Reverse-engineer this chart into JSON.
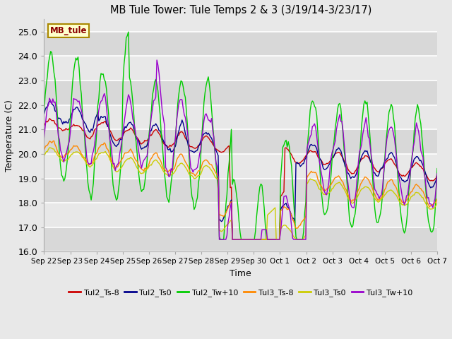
{
  "title": "MB Tule Tower: Tule Temps 2 & 3 (3/19/14-3/23/17)",
  "xlabel": "Time",
  "ylabel": "Temperature (C)",
  "ylim": [
    16.0,
    25.5
  ],
  "yticks": [
    16.0,
    17.0,
    18.0,
    19.0,
    20.0,
    21.0,
    22.0,
    23.0,
    24.0,
    25.0
  ],
  "legend_label": "MB_tule",
  "series_labels": [
    "Tul2_Ts-8",
    "Tul2_Ts0",
    "Tul2_Tw+10",
    "Tul3_Ts-8",
    "Tul3_Ts0",
    "Tul3_Tw+10"
  ],
  "series_colors": [
    "#cc0000",
    "#00008b",
    "#00cc00",
    "#ff8800",
    "#cccc00",
    "#9900cc"
  ],
  "background_color": "#e8e8e8",
  "plot_bg_color": "#e8e8e8",
  "grid_color": "#ffffff",
  "x_tick_labels": [
    "Sep 22",
    "Sep 23",
    "Sep 24",
    "Sep 25",
    "Sep 26",
    "Sep 27",
    "Sep 28",
    "Sep 29",
    "Sep 30",
    "Oct 1",
    "Oct 2",
    "Oct 3",
    "Oct 4",
    "Oct 5",
    "Oct 6",
    "Oct 7"
  ],
  "figsize": [
    6.4,
    4.8
  ],
  "dpi": 100
}
